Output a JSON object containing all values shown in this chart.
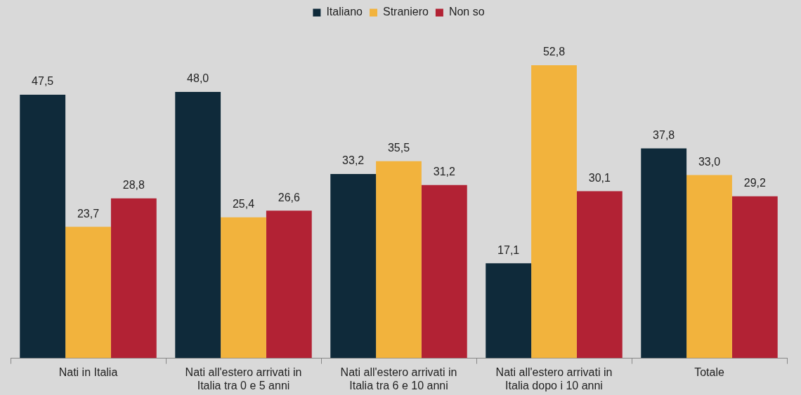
{
  "chart_data": {
    "type": "bar",
    "categories": [
      "Nati in Italia",
      "Nati all'estero arrivati in Italia tra 0 e 5 anni",
      "Nati all'estero arrivati in Italia tra 6 e 10 anni",
      "Nati all'estero arrivati in Italia dopo i 10 anni",
      "Totale"
    ],
    "series": [
      {
        "name": "Italiano",
        "color": "#0f2a3a",
        "values": [
          47.5,
          48.0,
          33.2,
          17.1,
          37.8
        ],
        "value_labels": [
          "47,5",
          "48,0",
          "33,2",
          "17,1",
          "37,8"
        ]
      },
      {
        "name": "Straniero",
        "color": "#f2b33d",
        "values": [
          23.7,
          25.4,
          35.5,
          52.8,
          33.0
        ],
        "value_labels": [
          "23,7",
          "25,4",
          "35,5",
          "52,8",
          "33,0"
        ]
      },
      {
        "name": "Non so",
        "color": "#b22234",
        "values": [
          28.8,
          26.6,
          31.2,
          30.1,
          29.2
        ],
        "value_labels": [
          "28,8",
          "26,6",
          "31,2",
          "30,1",
          "29,2"
        ]
      }
    ],
    "legend": "top"
  }
}
